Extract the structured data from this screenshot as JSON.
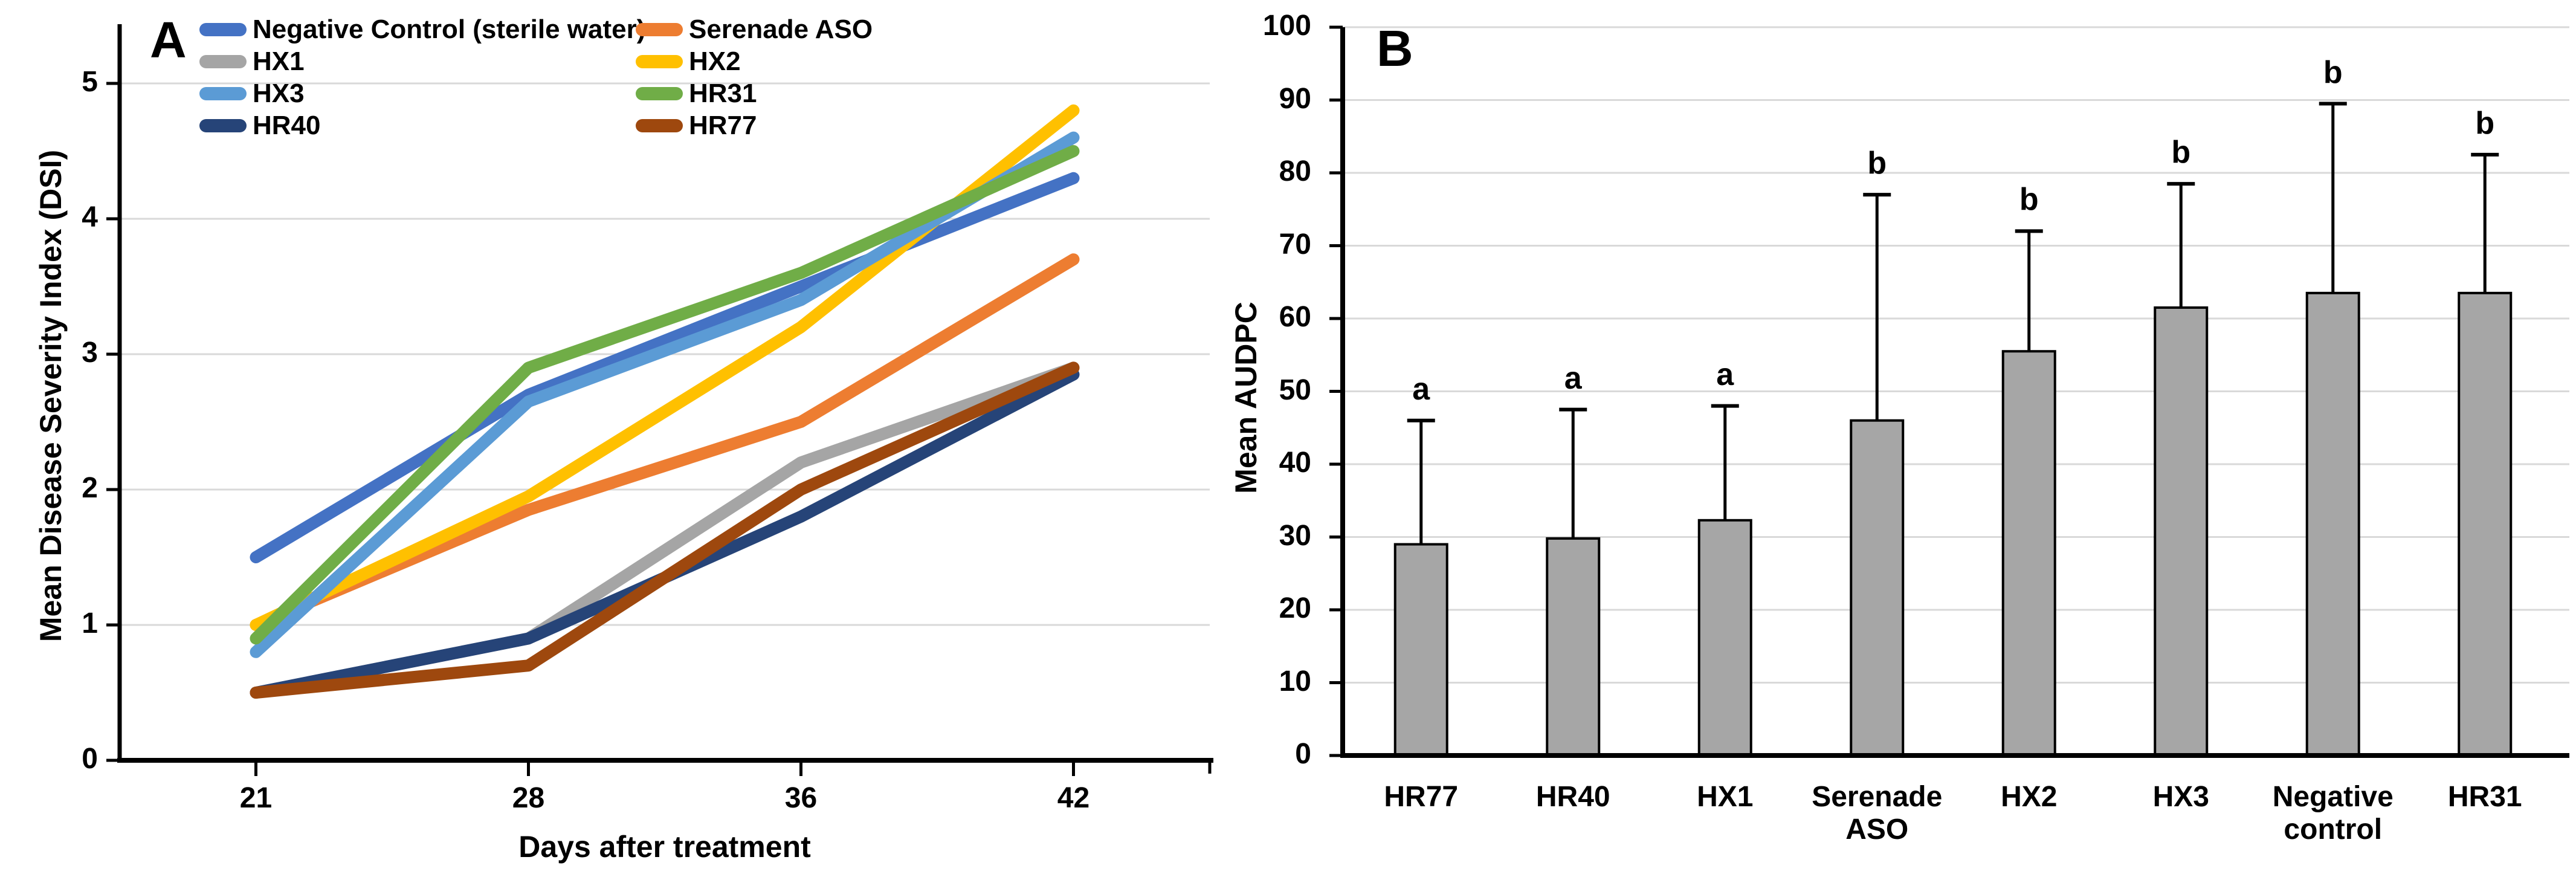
{
  "figure": {
    "panel_a_letter": "A",
    "panel_b_letter": "B"
  },
  "colors": {
    "gridline": "#D9D9D9",
    "axis": "#000000",
    "bar_fill": "#A6A6A6",
    "bar_border": "#000000",
    "error_bar": "#000000"
  },
  "chart_data": [
    {
      "id": "panel-a",
      "type": "line",
      "title": "",
      "xlabel": "Days after treatment",
      "ylabel": "Mean Disease Severity Index (DSI)",
      "categories": [
        "21",
        "28",
        "36",
        "42"
      ],
      "y_ticks": [
        0,
        1,
        2,
        3,
        4,
        5
      ],
      "ylim": [
        0,
        5.45
      ],
      "grid": true,
      "legend_position": "top-left, two columns",
      "series": [
        {
          "name": "Negative Control (sterile water)",
          "color": "#4472C4",
          "values": [
            1.5,
            2.7,
            3.5,
            4.3
          ]
        },
        {
          "name": "Serenade ASO",
          "color": "#ED7D31",
          "values": [
            1.0,
            1.85,
            2.5,
            3.7
          ]
        },
        {
          "name": "HX1",
          "color": "#A5A5A5",
          "values": [
            0.5,
            0.9,
            2.2,
            2.9
          ]
        },
        {
          "name": "HX2",
          "color": "#FFC000",
          "values": [
            1.0,
            1.95,
            3.2,
            4.8
          ]
        },
        {
          "name": "HX3",
          "color": "#5B9BD5",
          "values": [
            0.8,
            2.65,
            3.4,
            4.6
          ]
        },
        {
          "name": "HR31",
          "color": "#70AD47",
          "values": [
            0.9,
            2.9,
            3.6,
            4.5
          ]
        },
        {
          "name": "HR40",
          "color": "#264478",
          "values": [
            0.5,
            0.9,
            1.8,
            2.85
          ]
        },
        {
          "name": "HR77",
          "color": "#9E480E",
          "values": [
            0.5,
            0.7,
            2.0,
            2.9
          ]
        }
      ]
    },
    {
      "id": "panel-b",
      "type": "bar",
      "title": "",
      "xlabel": "",
      "ylabel": "Mean AUDPC",
      "categories": [
        "HR77",
        "HR40",
        "HX1",
        "Serenade ASO",
        "HX2",
        "HX3",
        "Negative control",
        "HR31"
      ],
      "category_label_lines": [
        [
          "HR77"
        ],
        [
          "HR40"
        ],
        [
          "HX1"
        ],
        [
          "Serenade",
          "ASO"
        ],
        [
          "HX2"
        ],
        [
          "HX3"
        ],
        [
          "Negative",
          "control"
        ],
        [
          "HR31"
        ]
      ],
      "values": [
        29,
        29.8,
        32.3,
        46,
        55.5,
        61.5,
        63.5,
        63.5
      ],
      "error_top": [
        46,
        47.5,
        48,
        77,
        72,
        78.5,
        89.5,
        82.5
      ],
      "letters": [
        "a",
        "a",
        "a",
        "b",
        "b",
        "b",
        "b",
        "b"
      ],
      "y_ticks": [
        0,
        10,
        20,
        30,
        40,
        50,
        60,
        70,
        80,
        90,
        100
      ],
      "ylim": [
        0,
        100
      ],
      "grid": true
    }
  ]
}
